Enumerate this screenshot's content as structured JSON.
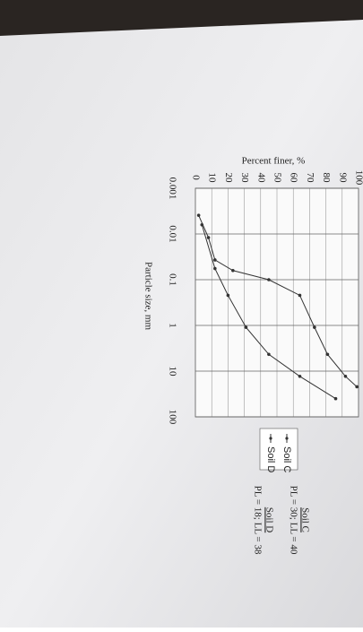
{
  "chart_data": {
    "type": "line",
    "y_label": "Percent finer, %",
    "x_label": "Particle size, mm",
    "log_x": true,
    "xlim": [
      0.001,
      100
    ],
    "xticks": [
      0.001,
      0.01,
      0.1,
      1,
      10,
      100
    ],
    "ylim": [
      0,
      100
    ],
    "yticks": [
      0,
      10,
      20,
      30,
      40,
      50,
      60,
      70,
      80,
      90,
      100
    ],
    "grid": true,
    "series": [
      {
        "name": "Soil C",
        "color": "#333333",
        "x": [
          0.0039,
          0.012,
          0.037,
          0.063,
          0.1,
          0.22,
          1.1,
          4.3,
          13,
          22
        ],
        "values": [
          2,
          8,
          12,
          23,
          45,
          64,
          73,
          81,
          92,
          99
        ]
      },
      {
        "name": "Soil D",
        "color": "#333333",
        "x": [
          0.0063,
          0.057,
          0.22,
          1.1,
          4.3,
          13,
          40
        ],
        "values": [
          4,
          12,
          20,
          31,
          45,
          64,
          86
        ]
      }
    ],
    "annotations": [
      "Soil C",
      "PL = 30; LL = 40",
      "Soil D",
      "PL = 18; LL = 38"
    ]
  }
}
